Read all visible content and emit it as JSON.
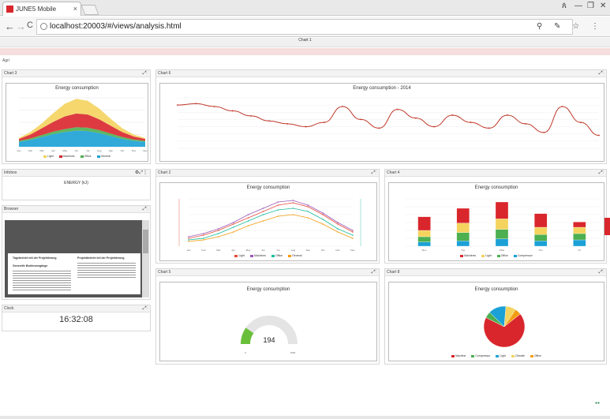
{
  "browser": {
    "tab_title": "JUNE5 Mobile",
    "tab_close": "×",
    "url": "localhost:20003/#/views/analysis.html",
    "window_controls": [
      "ጰ",
      "—",
      "❐",
      "✕"
    ],
    "nav_back": "←",
    "nav_forward": "→",
    "nav_reload": "C",
    "tool_icons": "⚲ ✎ ☆ ⋮"
  },
  "page": {
    "header_title": "Chart 1",
    "header_sub": "",
    "alert_text": "",
    "area_label": "Agri"
  },
  "panels": {
    "chart3": {
      "title": "Chart 3",
      "controls": "⤢⋮"
    },
    "chart6": {
      "title": "Chart 6",
      "controls": "⤢⋮"
    },
    "kpi": {
      "title": "Infobox",
      "controls": "⚙⤢⋮",
      "value": "ENERGY (kJ)"
    },
    "chart2": {
      "title": "Chart 2",
      "controls": "⤢⋮"
    },
    "chart4": {
      "title": "Chart 4",
      "controls": "⤢⋮"
    },
    "doc": {
      "title": "Browser",
      "controls": "⤢⋮"
    },
    "chart5": {
      "title": "Chart 5",
      "controls": "⤢⋮"
    },
    "chart8": {
      "title": "Chart 8",
      "controls": "⤢⋮"
    },
    "clock": {
      "title": "Clock",
      "controls": "⤢⋮",
      "time": "16:32:08",
      "date": ""
    }
  },
  "document": {
    "col1_heading": "Tagebericht teil der Projektierung",
    "col2_heading": "Projektbericht teil der Projektierung",
    "sub_heading": "Generelle Bedienvorgänge"
  },
  "chart_data": [
    {
      "type": "area",
      "title": "Energy consumption",
      "categories": [
        "Jan",
        "Feb",
        "Mar",
        "Apr",
        "May",
        "Jun",
        "Jul",
        "Aug",
        "Sep",
        "Oct",
        "Nov",
        "Dec"
      ],
      "series": [
        {
          "name": "Light",
          "color": "#f4d35e",
          "values": [
            2,
            5,
            10,
            18,
            26,
            30,
            28,
            22,
            14,
            8,
            4,
            2
          ]
        },
        {
          "name": "Machines",
          "color": "#d9262c",
          "values": [
            4,
            8,
            14,
            20,
            26,
            28,
            27,
            22,
            16,
            10,
            6,
            4
          ]
        },
        {
          "name": "Office",
          "color": "#4caf50",
          "values": [
            2,
            3,
            4,
            5,
            6,
            7,
            7,
            6,
            5,
            4,
            3,
            2
          ]
        },
        {
          "name": "General",
          "color": "#1ba1d6",
          "values": [
            10,
            14,
            20,
            26,
            30,
            33,
            32,
            28,
            22,
            16,
            12,
            10
          ]
        }
      ]
    },
    {
      "type": "line",
      "title": "Energy consumption - 2014",
      "color": "#c0392b",
      "values": [
        60,
        62,
        58,
        52,
        45,
        38,
        34,
        30,
        36,
        58,
        40,
        28,
        54,
        42,
        30,
        46,
        36,
        28,
        46,
        34,
        22,
        58,
        36,
        18
      ]
    },
    {
      "type": "line",
      "title": "Energy consumption",
      "categories": [
        "Jan",
        "Feb",
        "Mar",
        "Apr",
        "May",
        "Jun",
        "Jul",
        "Aug",
        "Sep",
        "Oct",
        "Nov",
        "Dec"
      ],
      "series": [
        {
          "name": "Light",
          "color": "#e74c3c",
          "values": [
            10,
            14,
            20,
            28,
            36,
            44,
            52,
            55,
            50,
            40,
            28,
            18
          ]
        },
        {
          "name": "Machines",
          "color": "#9b59b6",
          "values": [
            12,
            16,
            22,
            30,
            40,
            48,
            56,
            58,
            52,
            42,
            30,
            20
          ]
        },
        {
          "name": "Office",
          "color": "#1abc9c",
          "values": [
            8,
            10,
            16,
            24,
            32,
            40,
            46,
            48,
            44,
            34,
            22,
            14
          ]
        },
        {
          "name": "General",
          "color": "#f39c12",
          "values": [
            6,
            8,
            12,
            18,
            26,
            32,
            38,
            40,
            36,
            28,
            18,
            10
          ]
        }
      ]
    },
    {
      "type": "bar",
      "title": "Energy consumption",
      "categories": [
        "Mon",
        "Tue",
        "Wed",
        "Thu",
        "Fri"
      ],
      "series": [
        {
          "name": "Machines",
          "color": "#d9262c",
          "values": [
            26,
            28,
            32,
            26,
            10
          ]
        },
        {
          "name": "Light",
          "color": "#f4d35e",
          "values": [
            12,
            18,
            20,
            14,
            12
          ]
        },
        {
          "name": "Office",
          "color": "#4caf50",
          "values": [
            10,
            16,
            18,
            12,
            12
          ]
        },
        {
          "name": "Compressor",
          "color": "#1ba1d6",
          "values": [
            8,
            10,
            14,
            10,
            12
          ]
        }
      ]
    },
    {
      "type": "gauge",
      "title": "Energy consumption",
      "value": 194,
      "min": 0,
      "max": 1000
    },
    {
      "type": "pie",
      "title": "Energy consumption",
      "slices": [
        {
          "name": "Machine",
          "color": "#d9262c",
          "value": 68
        },
        {
          "name": "Compressor",
          "color": "#4caf50",
          "value": 5
        },
        {
          "name": "Light",
          "color": "#1ba1d6",
          "value": 14
        },
        {
          "name": "Climate",
          "color": "#f4d35e",
          "value": 8
        },
        {
          "name": "Office",
          "color": "#f39c12",
          "value": 5
        }
      ]
    }
  ]
}
